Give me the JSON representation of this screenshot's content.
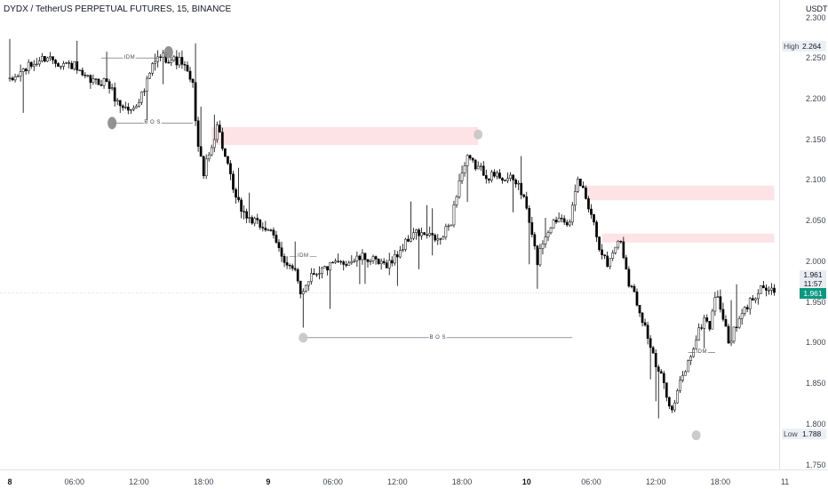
{
  "title": "DYDX / TetherUS PERPETUAL FUTURES, 15, BINANCE",
  "price_unit": "USDT",
  "colors": {
    "up_body": "#ffffff",
    "down_body": "#000000",
    "wick": "#000000",
    "zone_fill": "#fde3e5",
    "marker": "#8e8e8e",
    "current_price": "#089981",
    "gridline": "#e0e3eb"
  },
  "high_label": {
    "label": "High",
    "value": "2.264"
  },
  "low_label": {
    "label": "Low",
    "value": "1.788"
  },
  "current_price": {
    "value": "1.961",
    "line_value": 1.961
  },
  "countdown": {
    "price": "1.961",
    "time": "11:57"
  },
  "annotations": {
    "bos_top": "B O S",
    "bos_mid": "B O S",
    "idm_top": "IDM",
    "idm_mid": "IDM",
    "idm_low": "IDM"
  },
  "chart_data": {
    "type": "candlestick",
    "title": "DYDX / TetherUS PERPETUAL FUTURES, 15, BINANCE",
    "y_unit": "USDT",
    "interval_minutes": 15,
    "ylim": [
      1.735,
      2.31
    ],
    "y_ticks": [
      "2.300",
      "2.250",
      "2.200",
      "2.150",
      "2.100",
      "2.050",
      "2.000",
      "1.950",
      "1.900",
      "1.850",
      "1.800",
      "1.750"
    ],
    "x_ticks": [
      {
        "label": "8",
        "day": true,
        "bar": 0
      },
      {
        "label": "06:00",
        "day": false,
        "bar": 24
      },
      {
        "label": "12:00",
        "day": false,
        "bar": 48
      },
      {
        "label": "18:00",
        "day": false,
        "bar": 72
      },
      {
        "label": "9",
        "day": true,
        "bar": 96
      },
      {
        "label": "06:00",
        "day": false,
        "bar": 120
      },
      {
        "label": "12:00",
        "day": false,
        "bar": 144
      },
      {
        "label": "18:00",
        "day": false,
        "bar": 168
      },
      {
        "label": "10",
        "day": true,
        "bar": 192
      },
      {
        "label": "06:00",
        "day": false,
        "bar": 216
      },
      {
        "label": "12:00",
        "day": false,
        "bar": 240
      },
      {
        "label": "18:00",
        "day": false,
        "bar": 264
      },
      {
        "label": "11",
        "day": false,
        "bar": 288
      }
    ],
    "high": 2.264,
    "low": 1.788,
    "close": 1.961,
    "close_path": [
      [
        0,
        2.22
      ],
      [
        5,
        2.235
      ],
      [
        10,
        2.245
      ],
      [
        14,
        2.252
      ],
      [
        18,
        2.245
      ],
      [
        24,
        2.24
      ],
      [
        27,
        2.225
      ],
      [
        32,
        2.22
      ],
      [
        36,
        2.222
      ],
      [
        40,
        2.195
      ],
      [
        45,
        2.185
      ],
      [
        50,
        2.21
      ],
      [
        53,
        2.24
      ],
      [
        56,
        2.253
      ],
      [
        60,
        2.248
      ],
      [
        64,
        2.245
      ],
      [
        68,
        2.215
      ],
      [
        70,
        2.14
      ],
      [
        72,
        2.11
      ],
      [
        75,
        2.14
      ],
      [
        77,
        2.17
      ],
      [
        80,
        2.128
      ],
      [
        84,
        2.075
      ],
      [
        88,
        2.055
      ],
      [
        92,
        2.045
      ],
      [
        96,
        2.04
      ],
      [
        100,
        2.015
      ],
      [
        103,
        1.997
      ],
      [
        106,
        1.985
      ],
      [
        108,
        1.96
      ],
      [
        112,
        1.985
      ],
      [
        116,
        1.99
      ],
      [
        120,
        1.995
      ],
      [
        126,
        2.0
      ],
      [
        132,
        2.005
      ],
      [
        138,
        1.995
      ],
      [
        142,
        2.0
      ],
      [
        146,
        2.018
      ],
      [
        150,
        2.035
      ],
      [
        156,
        2.03
      ],
      [
        160,
        2.025
      ],
      [
        164,
        2.05
      ],
      [
        167,
        2.1
      ],
      [
        170,
        2.125
      ],
      [
        174,
        2.115
      ],
      [
        178,
        2.105
      ],
      [
        182,
        2.105
      ],
      [
        186,
        2.1
      ],
      [
        189,
        2.095
      ],
      [
        192,
        2.065
      ],
      [
        194,
        2.03
      ],
      [
        196,
        2.0
      ],
      [
        198,
        2.025
      ],
      [
        201,
        2.045
      ],
      [
        205,
        2.058
      ],
      [
        208,
        2.045
      ],
      [
        211,
        2.1
      ],
      [
        213,
        2.088
      ],
      [
        216,
        2.06
      ],
      [
        219,
        2.02
      ],
      [
        222,
        1.995
      ],
      [
        225,
        2.02
      ],
      [
        227,
        2.025
      ],
      [
        230,
        1.975
      ],
      [
        232,
        1.96
      ],
      [
        236,
        1.92
      ],
      [
        240,
        1.87
      ],
      [
        243,
        1.85
      ],
      [
        246,
        1.815
      ],
      [
        249,
        1.85
      ],
      [
        252,
        1.875
      ],
      [
        255,
        1.905
      ],
      [
        258,
        1.93
      ],
      [
        260,
        1.92
      ],
      [
        262,
        1.958
      ],
      [
        264,
        1.945
      ],
      [
        267,
        1.9
      ],
      [
        270,
        1.92
      ],
      [
        273,
        1.94
      ],
      [
        276,
        1.955
      ],
      [
        279,
        1.97
      ],
      [
        282,
        1.964
      ],
      [
        284,
        1.961
      ]
    ],
    "supply_zones": [
      {
        "from_bar": 75,
        "to_bar": 174,
        "top": 2.165,
        "bottom": 2.143
      },
      {
        "from_bar": 214,
        "to_bar": 284,
        "top": 2.093,
        "bottom": 2.075
      },
      {
        "from_bar": 220,
        "to_bar": 284,
        "top": 2.034,
        "bottom": 2.023
      }
    ],
    "markers": [
      {
        "bar": 59,
        "price": 2.257,
        "size": "large"
      },
      {
        "bar": 38,
        "price": 2.17,
        "size": "large"
      },
      {
        "bar": 174,
        "price": 2.156,
        "size": "small"
      },
      {
        "bar": 109,
        "price": 1.906,
        "size": "small"
      },
      {
        "bar": 255,
        "price": 1.786,
        "size": "small"
      }
    ],
    "annotations": [
      {
        "text": "IDM",
        "from_bar": 34,
        "to_bar": 55,
        "price": 2.25
      },
      {
        "text": "B O S",
        "from_bar": 38,
        "to_bar": 68,
        "price": 2.17
      },
      {
        "text": "IDM",
        "from_bar": 104,
        "to_bar": 114,
        "price": 2.006
      },
      {
        "text": "B O S",
        "from_bar": 109,
        "to_bar": 209,
        "price": 1.906
      },
      {
        "text": "IDM",
        "from_bar": 252,
        "to_bar": 262,
        "price": 1.888
      }
    ],
    "grid": false
  }
}
